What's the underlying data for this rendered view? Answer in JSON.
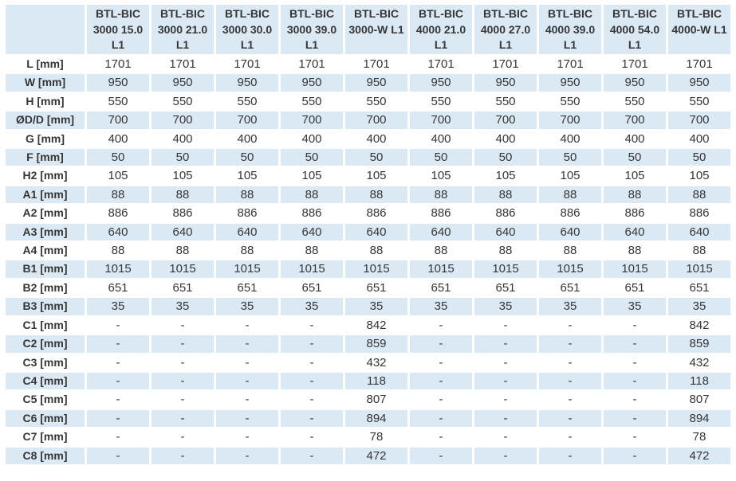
{
  "colors": {
    "row_shaded": "#dbe9f5",
    "row_plain": "#ffffff",
    "text": "#363636"
  },
  "table": {
    "corner_label": "",
    "columns": [
      {
        "name": "BTL-BIC 3000 15.0 L1",
        "lines": [
          "BTL-BIC",
          "3000 15.0",
          "L1"
        ]
      },
      {
        "name": "BTL-BIC 3000 21.0 L1",
        "lines": [
          "BTL-BIC",
          "3000 21.0",
          "L1"
        ]
      },
      {
        "name": "BTL-BIC 3000 30.0 L1",
        "lines": [
          "BTL-BIC",
          "3000 30.0",
          "L1"
        ]
      },
      {
        "name": "BTL-BIC 3000 39.0 L1",
        "lines": [
          "BTL-BIC",
          "3000 39.0",
          "L1"
        ]
      },
      {
        "name": "BTL-BIC 3000-W L1",
        "lines": [
          "BTL-BIC",
          "3000-W L1"
        ]
      },
      {
        "name": "BTL-BIC 4000 21.0 L1",
        "lines": [
          "BTL-BIC",
          "4000 21.0",
          "L1"
        ]
      },
      {
        "name": "BTL-BIC 4000 27.0 L1",
        "lines": [
          "BTL-BIC",
          "4000 27.0",
          "L1"
        ]
      },
      {
        "name": "BTL-BIC 4000 39.0 L1",
        "lines": [
          "BTL-BIC",
          "4000 39.0",
          "L1"
        ]
      },
      {
        "name": "BTL-BIC 4000 54.0 L1",
        "lines": [
          "BTL-BIC",
          "4000 54.0",
          "L1"
        ]
      },
      {
        "name": "BTL-BIC 4000-W L1",
        "lines": [
          "BTL-BIC",
          "4000-W L1"
        ]
      }
    ],
    "rows": [
      {
        "label": "L [mm]",
        "values": [
          "1701",
          "1701",
          "1701",
          "1701",
          "1701",
          "1701",
          "1701",
          "1701",
          "1701",
          "1701"
        ]
      },
      {
        "label": "W [mm]",
        "values": [
          "950",
          "950",
          "950",
          "950",
          "950",
          "950",
          "950",
          "950",
          "950",
          "950"
        ]
      },
      {
        "label": "H [mm]",
        "values": [
          "550",
          "550",
          "550",
          "550",
          "550",
          "550",
          "550",
          "550",
          "550",
          "550"
        ]
      },
      {
        "label": "ØD/D [mm]",
        "values": [
          "700",
          "700",
          "700",
          "700",
          "700",
          "700",
          "700",
          "700",
          "700",
          "700"
        ]
      },
      {
        "label": "G [mm]",
        "values": [
          "400",
          "400",
          "400",
          "400",
          "400",
          "400",
          "400",
          "400",
          "400",
          "400"
        ]
      },
      {
        "label": "F [mm]",
        "values": [
          "50",
          "50",
          "50",
          "50",
          "50",
          "50",
          "50",
          "50",
          "50",
          "50"
        ]
      },
      {
        "label": "H2 [mm]",
        "values": [
          "105",
          "105",
          "105",
          "105",
          "105",
          "105",
          "105",
          "105",
          "105",
          "105"
        ]
      },
      {
        "label": "A1 [mm]",
        "values": [
          "88",
          "88",
          "88",
          "88",
          "88",
          "88",
          "88",
          "88",
          "88",
          "88"
        ]
      },
      {
        "label": "A2 [mm]",
        "values": [
          "886",
          "886",
          "886",
          "886",
          "886",
          "886",
          "886",
          "886",
          "886",
          "886"
        ]
      },
      {
        "label": "A3 [mm]",
        "values": [
          "640",
          "640",
          "640",
          "640",
          "640",
          "640",
          "640",
          "640",
          "640",
          "640"
        ]
      },
      {
        "label": "A4 [mm]",
        "values": [
          "88",
          "88",
          "88",
          "88",
          "88",
          "88",
          "88",
          "88",
          "88",
          "88"
        ]
      },
      {
        "label": "B1 [mm]",
        "values": [
          "1015",
          "1015",
          "1015",
          "1015",
          "1015",
          "1015",
          "1015",
          "1015",
          "1015",
          "1015"
        ]
      },
      {
        "label": "B2 [mm]",
        "values": [
          "651",
          "651",
          "651",
          "651",
          "651",
          "651",
          "651",
          "651",
          "651",
          "651"
        ]
      },
      {
        "label": "B3 [mm]",
        "values": [
          "35",
          "35",
          "35",
          "35",
          "35",
          "35",
          "35",
          "35",
          "35",
          "35"
        ]
      },
      {
        "label": "C1 [mm]",
        "values": [
          "-",
          "-",
          "-",
          "-",
          "842",
          "-",
          "-",
          "-",
          "-",
          "842"
        ]
      },
      {
        "label": "C2 [mm]",
        "values": [
          "-",
          "-",
          "-",
          "-",
          "859",
          "-",
          "-",
          "-",
          "-",
          "859"
        ]
      },
      {
        "label": "C3 [mm]",
        "values": [
          "-",
          "-",
          "-",
          "-",
          "432",
          "-",
          "-",
          "-",
          "-",
          "432"
        ]
      },
      {
        "label": "C4 [mm]",
        "values": [
          "-",
          "-",
          "-",
          "-",
          "118",
          "-",
          "-",
          "-",
          "-",
          "118"
        ]
      },
      {
        "label": "C5 [mm]",
        "values": [
          "-",
          "-",
          "-",
          "-",
          "807",
          "-",
          "-",
          "-",
          "-",
          "807"
        ]
      },
      {
        "label": "C6 [mm]",
        "values": [
          "-",
          "-",
          "-",
          "-",
          "894",
          "-",
          "-",
          "-",
          "-",
          "894"
        ]
      },
      {
        "label": "C7 [mm]",
        "values": [
          "-",
          "-",
          "-",
          "-",
          "78",
          "-",
          "-",
          "-",
          "-",
          "78"
        ]
      },
      {
        "label": "C8 [mm]",
        "values": [
          "-",
          "-",
          "-",
          "-",
          "472",
          "-",
          "-",
          "-",
          "-",
          "472"
        ]
      }
    ]
  }
}
